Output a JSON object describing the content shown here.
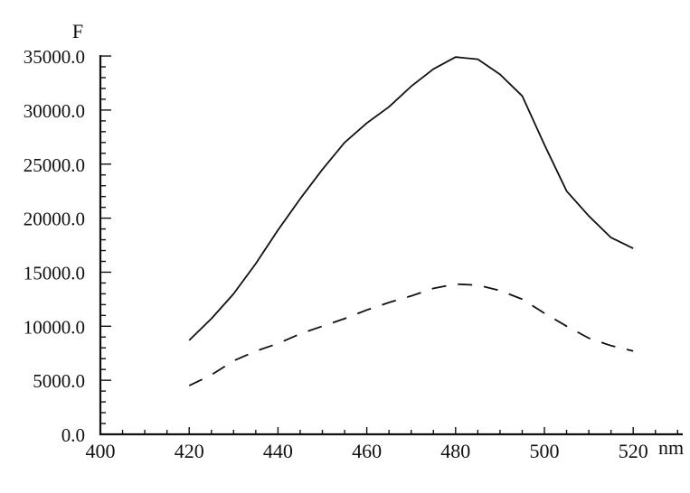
{
  "chart_data": {
    "type": "line",
    "title": "",
    "xlabel": "nm",
    "ylabel": "F",
    "xlim": [
      400,
      531
    ],
    "ylim": [
      0,
      35000
    ],
    "x_ticks": [
      400,
      420,
      440,
      460,
      480,
      500,
      520
    ],
    "x_tick_labels": [
      "400",
      "420",
      "440",
      "460",
      "480",
      "500",
      "520"
    ],
    "y_ticks": [
      0,
      5000,
      10000,
      15000,
      20000,
      25000,
      30000,
      35000
    ],
    "y_tick_labels": [
      "0.0",
      "5000.0",
      "10000.0",
      "15000.0",
      "20000.0",
      "25000.0",
      "30000.0",
      "35000.0"
    ],
    "x_minor_step": 5,
    "y_minor_step": 1000,
    "grid": false,
    "legend": null,
    "x": [
      420,
      425,
      430,
      435,
      440,
      445,
      450,
      455,
      460,
      465,
      470,
      475,
      480,
      485,
      490,
      495,
      500,
      505,
      510,
      515,
      520
    ],
    "series": [
      {
        "name": "solid",
        "style": "solid",
        "color": "#111111",
        "values": [
          8700,
          10700,
          13000,
          15800,
          18900,
          21800,
          24500,
          27000,
          28800,
          30300,
          32200,
          33800,
          34900,
          34700,
          33300,
          31300,
          26800,
          22500,
          20200,
          18200,
          17200
        ]
      },
      {
        "name": "dashed",
        "style": "dashed",
        "color": "#111111",
        "values": [
          4500,
          5500,
          6800,
          7700,
          8400,
          9300,
          10000,
          10700,
          11500,
          12200,
          12800,
          13500,
          13900,
          13800,
          13300,
          12500,
          11200,
          10000,
          8900,
          8200,
          7700
        ]
      }
    ]
  }
}
